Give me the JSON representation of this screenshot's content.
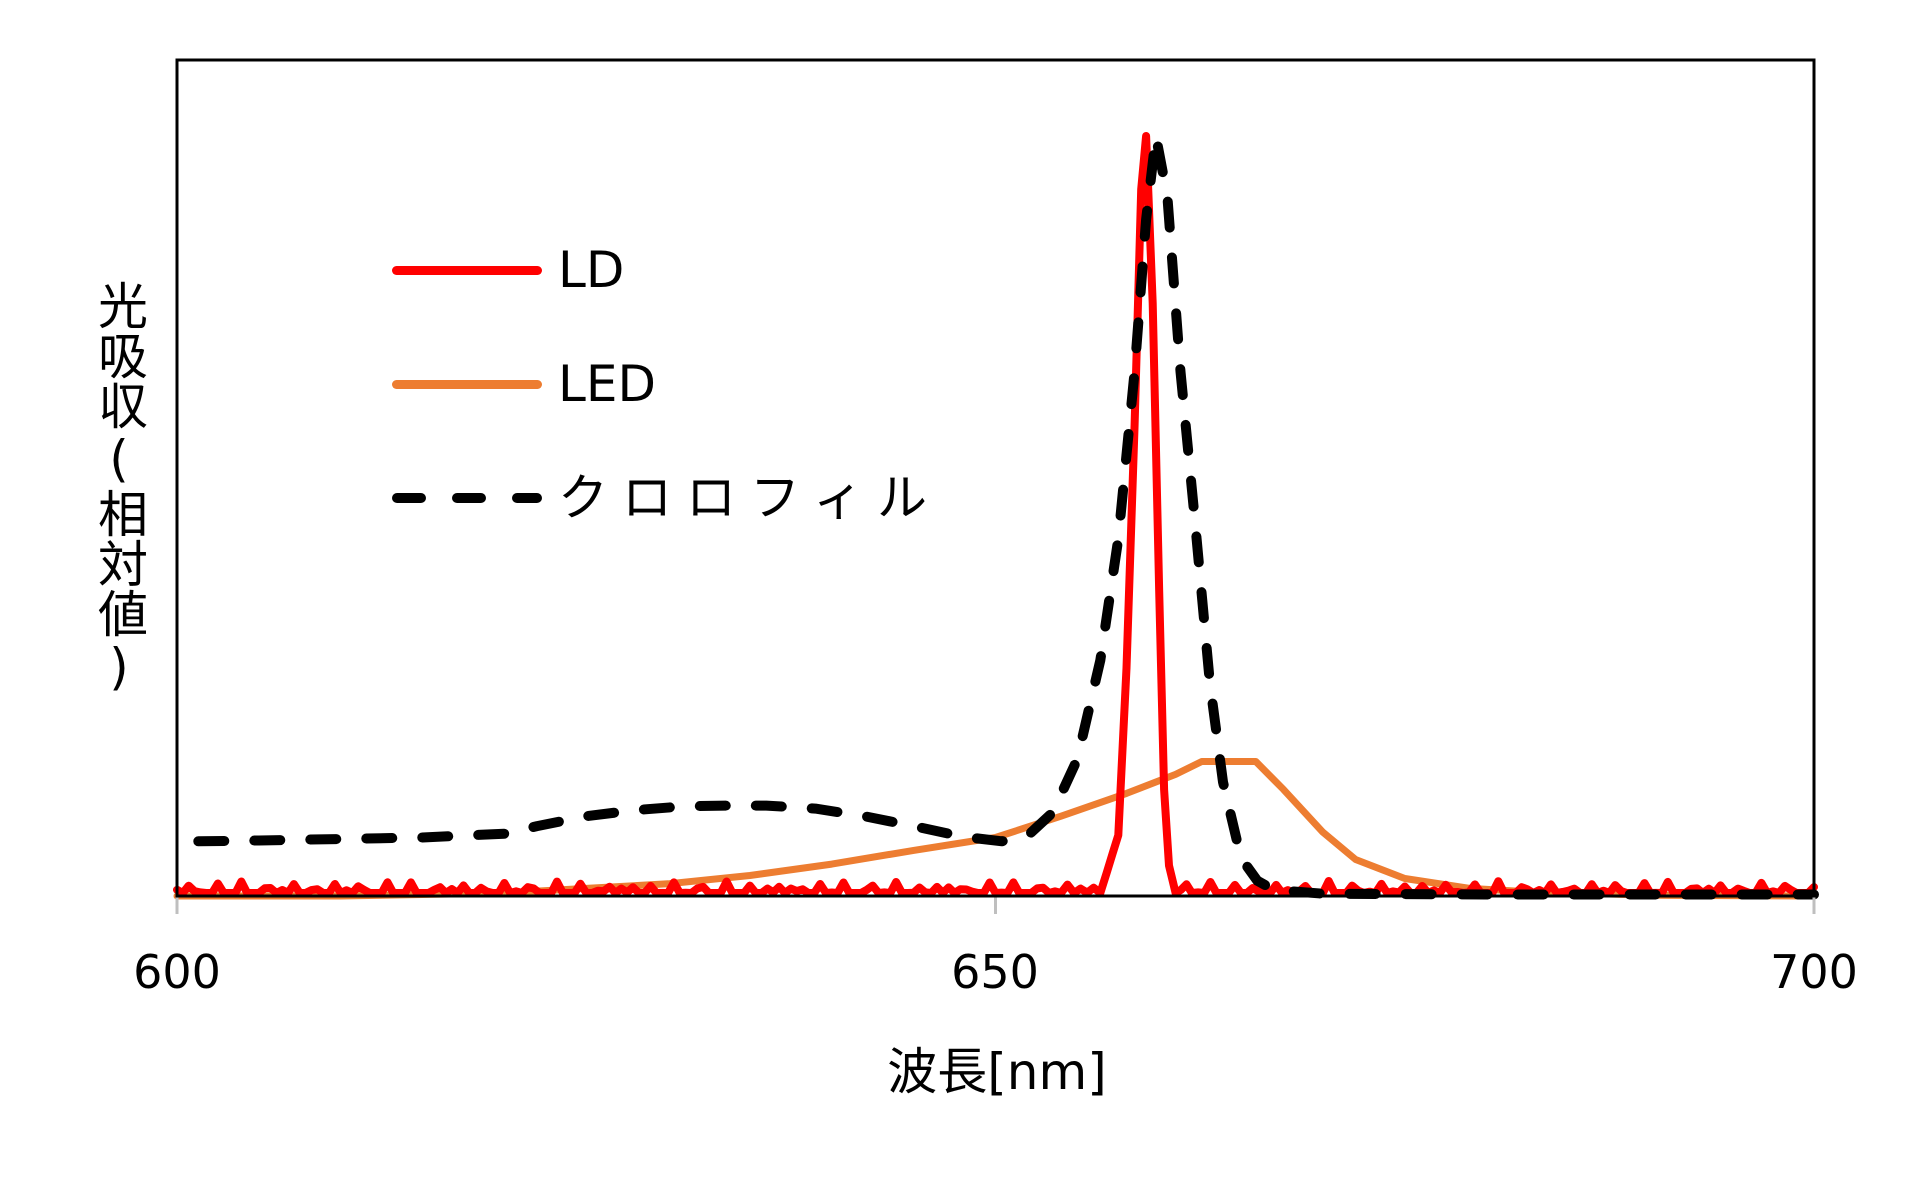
{
  "chart_data": {
    "type": "line",
    "title": "",
    "xlabel": "波長[nm]",
    "ylabel": "光吸収(相対値)",
    "xlim": [
      600,
      700
    ],
    "ylim": [
      0,
      1.1
    ],
    "x_ticks": [
      600,
      650,
      700
    ],
    "x_tick_labels": [
      "600",
      "650",
      "700"
    ],
    "y_ticks": [],
    "grid": false,
    "legend_position": "upper-left (inside plot)",
    "series": [
      {
        "name": "LD",
        "color": "#FF0000",
        "style": "solid",
        "x": [
          600,
          605,
          610,
          615,
          620,
          625,
          630,
          635,
          640,
          645,
          650,
          654,
          656,
          656.8,
          657.5,
          658.0,
          658.5,
          658.9,
          659.2,
          659.6,
          660.0,
          660.3,
          660.6,
          661.0,
          662,
          665,
          670,
          675,
          680,
          685,
          690,
          695,
          700
        ],
        "y": [
          0.005,
          0.008,
          0.006,
          0.008,
          0.004,
          0.006,
          0.004,
          0.006,
          0.008,
          0.009,
          0.007,
          0.008,
          0.012,
          0.025,
          0.08,
          0.3,
          0.62,
          0.93,
          1.0,
          0.78,
          0.4,
          0.14,
          0.04,
          0.02,
          0.012,
          0.008,
          0.007,
          0.006,
          0.006,
          0.008,
          0.007,
          0.008,
          0.006
        ]
      },
      {
        "name": "LED",
        "color": "#ED7D31",
        "style": "solid",
        "x": [
          600,
          610,
          620,
          625,
          630,
          635,
          640,
          645,
          650,
          654,
          658,
          661,
          662.6,
          665.9,
          667.6,
          670,
          672,
          675,
          679,
          683,
          687,
          690,
          700
        ],
        "y": [
          0.0,
          0.0,
          0.004,
          0.01,
          0.016,
          0.027,
          0.042,
          0.06,
          0.077,
          0.105,
          0.135,
          0.16,
          0.177,
          0.177,
          0.14,
          0.084,
          0.048,
          0.023,
          0.01,
          0.005,
          0.003,
          0.001,
          0.0
        ]
      },
      {
        "name": "クロロフィル",
        "color": "#000000",
        "style": "dashed",
        "x": [
          601.3,
          605,
          610,
          615,
          620,
          622,
          625,
          628,
          631,
          633.5,
          636,
          639,
          642,
          645,
          648,
          650.4,
          652,
          653.5,
          655,
          656.4,
          657.5,
          658.5,
          659.2,
          659.8,
          660.5,
          661.3,
          662.2,
          663.1,
          663.9,
          665,
          666,
          667,
          670,
          680,
          690,
          700
        ],
        "y": [
          0.072,
          0.073,
          0.075,
          0.077,
          0.082,
          0.092,
          0.105,
          0.113,
          0.118,
          0.119,
          0.119,
          0.115,
          0.105,
          0.092,
          0.078,
          0.072,
          0.08,
          0.11,
          0.18,
          0.31,
          0.47,
          0.69,
          0.89,
          1.0,
          0.92,
          0.69,
          0.49,
          0.28,
          0.15,
          0.05,
          0.02,
          0.008,
          0.003,
          0.002,
          0.002,
          0.002
        ]
      }
    ]
  },
  "legend": {
    "items": [
      {
        "label": "LD",
        "color": "#FF0000",
        "style": "solid"
      },
      {
        "label": "LED",
        "color": "#ED7D31",
        "style": "solid"
      },
      {
        "label": "クロロフィル",
        "color": "#000000",
        "style": "dashed"
      }
    ]
  },
  "axes": {
    "x_title": "波長[nm]",
    "y_title": "光吸収(相対値)",
    "x_tick_labels": [
      "600",
      "650",
      "700"
    ]
  },
  "colors": {
    "ld": "#FF0000",
    "led": "#ED7D31",
    "chlorophyll": "#000000",
    "frame": "#000000",
    "tick": "#BFBFBF"
  }
}
